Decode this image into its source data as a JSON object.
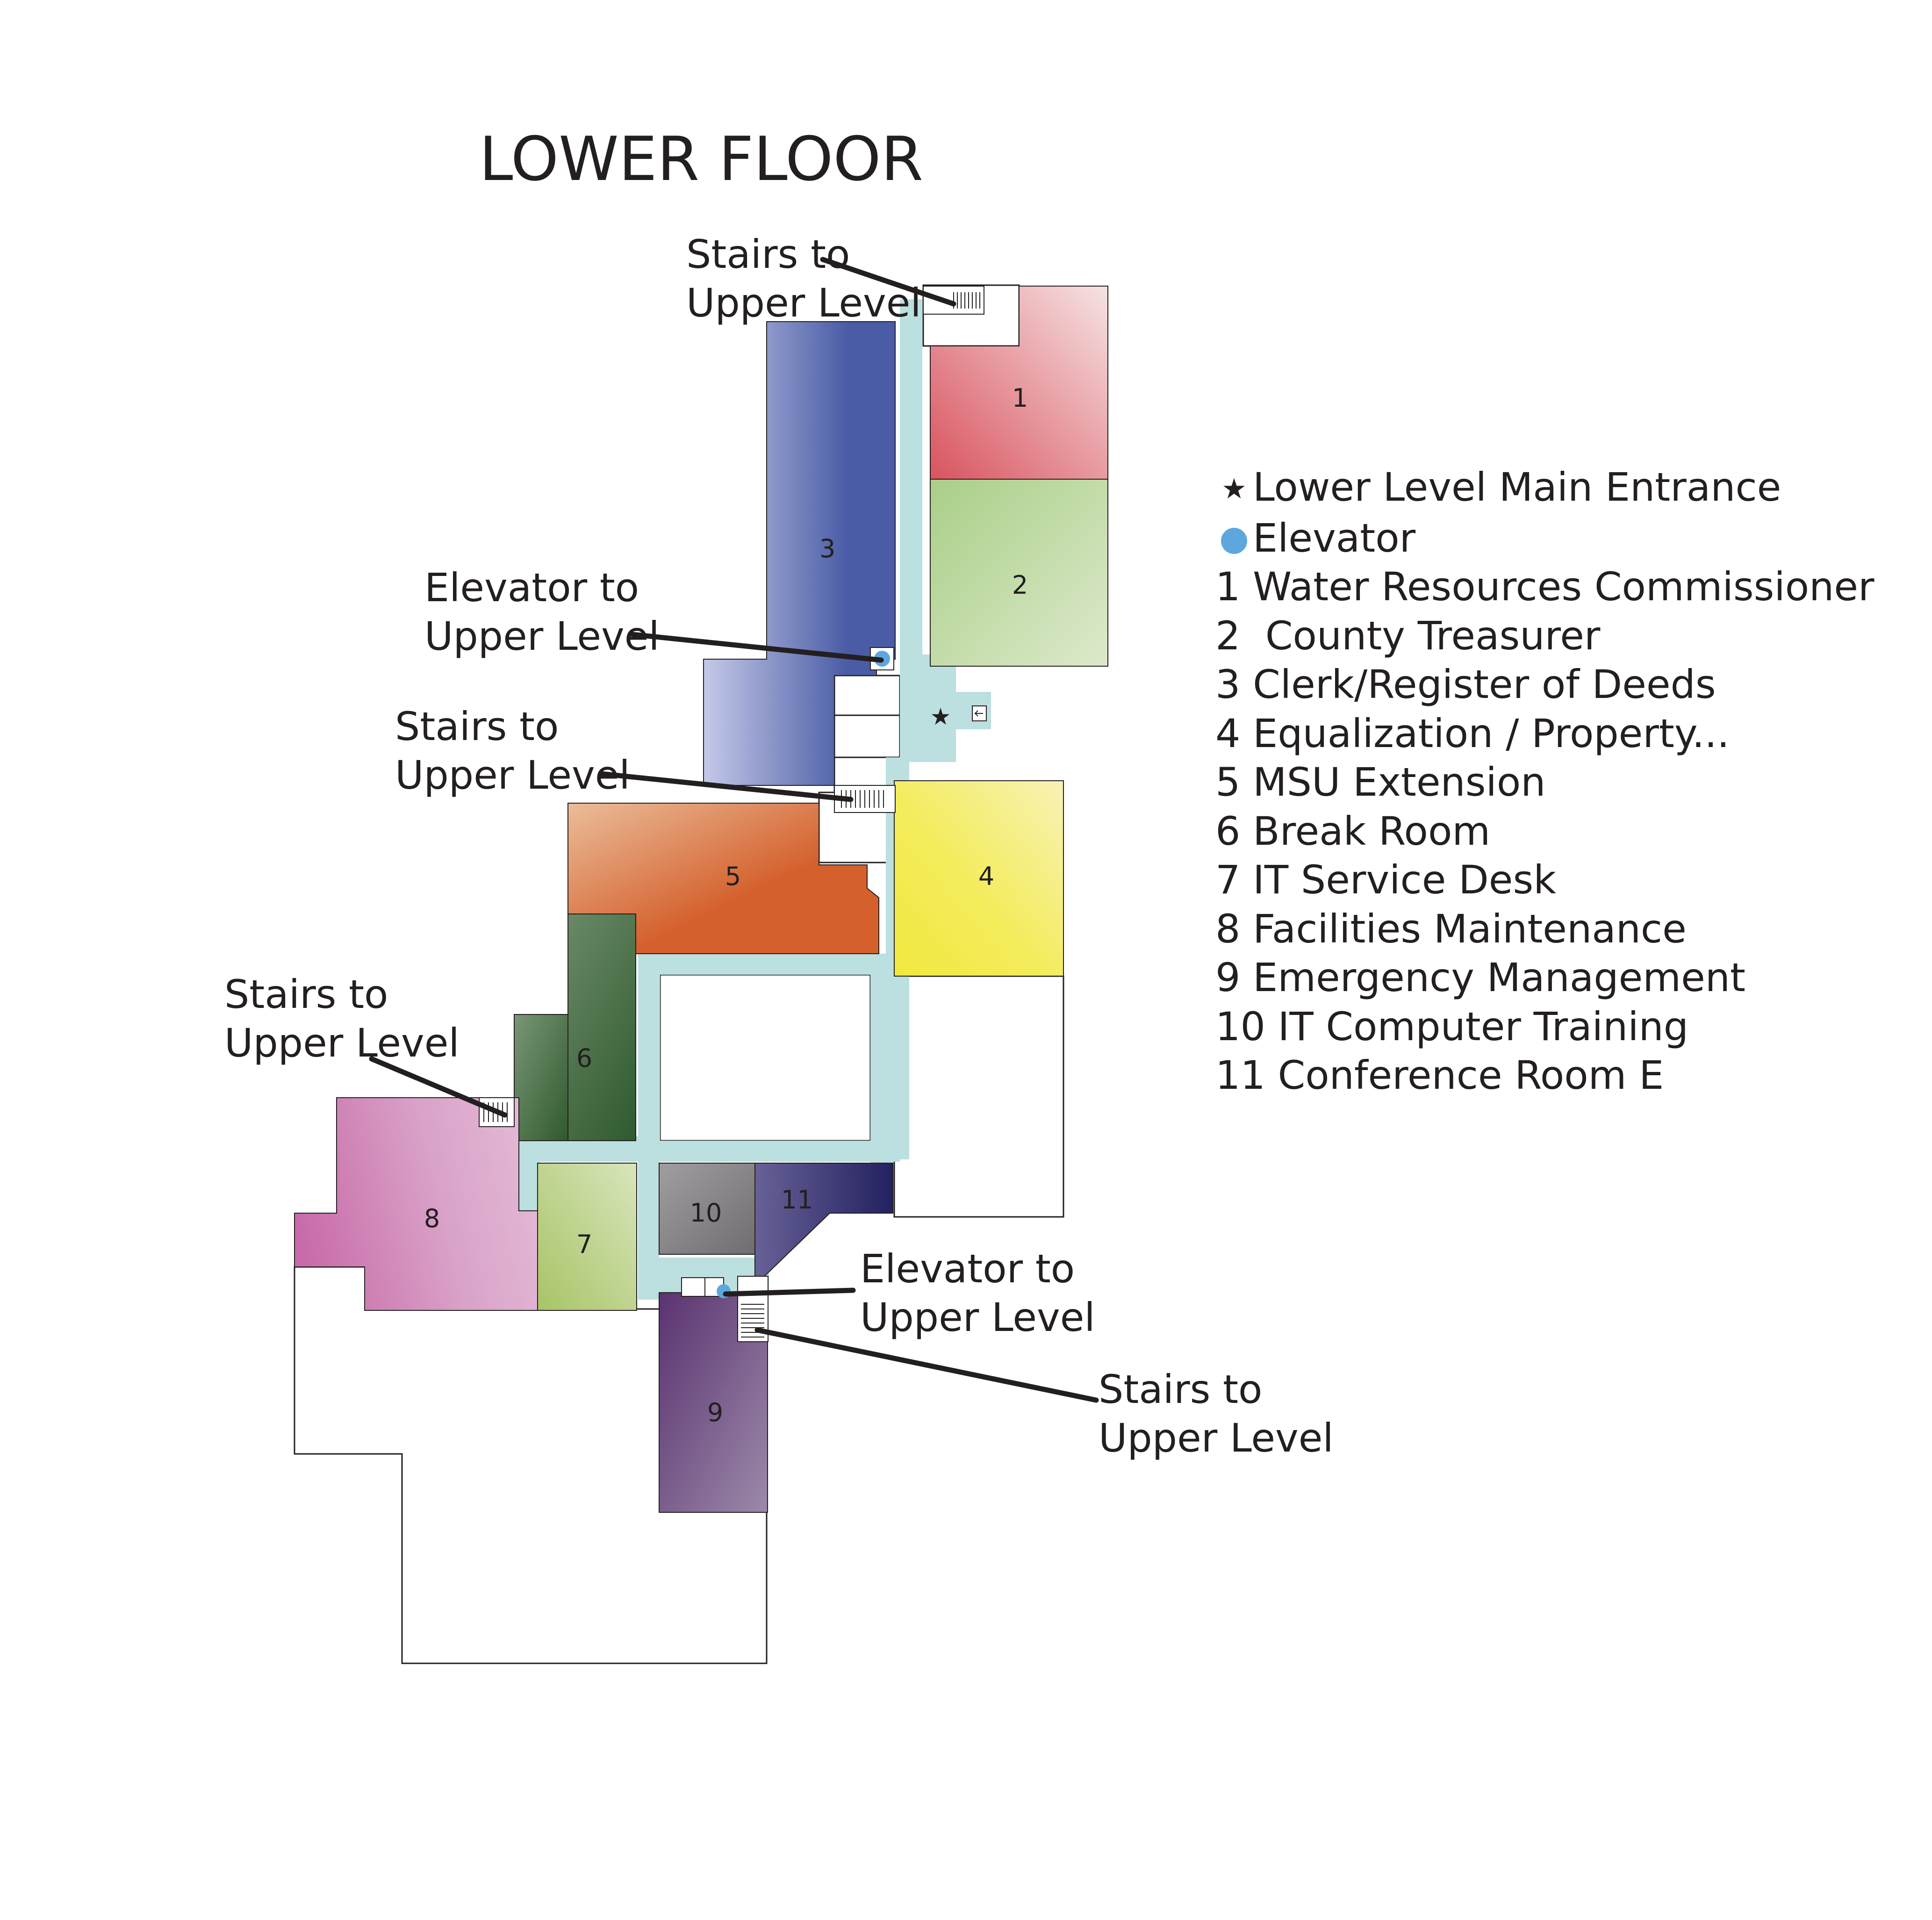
{
  "title": "LOWER FLOOR",
  "callouts": {
    "stairs_label_line1": "Stairs to",
    "stairs_label_line2": "Upper Level",
    "elevator_label_line1": "Elevator to",
    "elevator_label_line2": "Upper Level"
  },
  "rooms": [
    {
      "number": "1",
      "name": "Water Resources Commissioner",
      "color": "#d9535f"
    },
    {
      "number": "2",
      "name": "County Treasurer",
      "color": "#a9cf88"
    },
    {
      "number": "3",
      "name": "Clerk/Register of Deeds",
      "color": "#4a5ca6"
    },
    {
      "number": "4",
      "name": "Equalization / Property...",
      "color": "#f2e93e"
    },
    {
      "number": "5",
      "name": "MSU Extension",
      "color": "#d4602c"
    },
    {
      "number": "6",
      "name": "Break Room",
      "color": "#2f5a2e"
    },
    {
      "number": "7",
      "name": "IT Service Desk",
      "color": "#a8c466"
    },
    {
      "number": "8",
      "name": "Facilities Maintenance",
      "color": "#cf80b4"
    },
    {
      "number": "9",
      "name": "Emergency Management",
      "color": "#5f3a72"
    },
    {
      "number": "10",
      "name": "IT Computer Training",
      "color": "#807e80"
    },
    {
      "number": "11",
      "name": "Conference Room E",
      "color": "#2e2c6a"
    }
  ],
  "legend": {
    "entrance_label": "Lower Level Main Entrance",
    "elevator_label": "Elevator",
    "entrance_icon": "star-icon",
    "elevator_icon": "elevator-dot-icon",
    "items": [
      "1 Water Resources Commissioner",
      "2  County Treasurer",
      "3 Clerk/Register of Deeds",
      "4 Equalization / Property...",
      "5 MSU Extension",
      "6 Break Room",
      "7 IT Service Desk",
      "8 Facilities Maintenance",
      "9 Emergency Management",
      "10 IT Computer Training",
      "11 Conference Room E"
    ]
  },
  "colors": {
    "corridor": "#bcdfe0",
    "elevator": "#5ea7de",
    "outline": "#231f20"
  }
}
